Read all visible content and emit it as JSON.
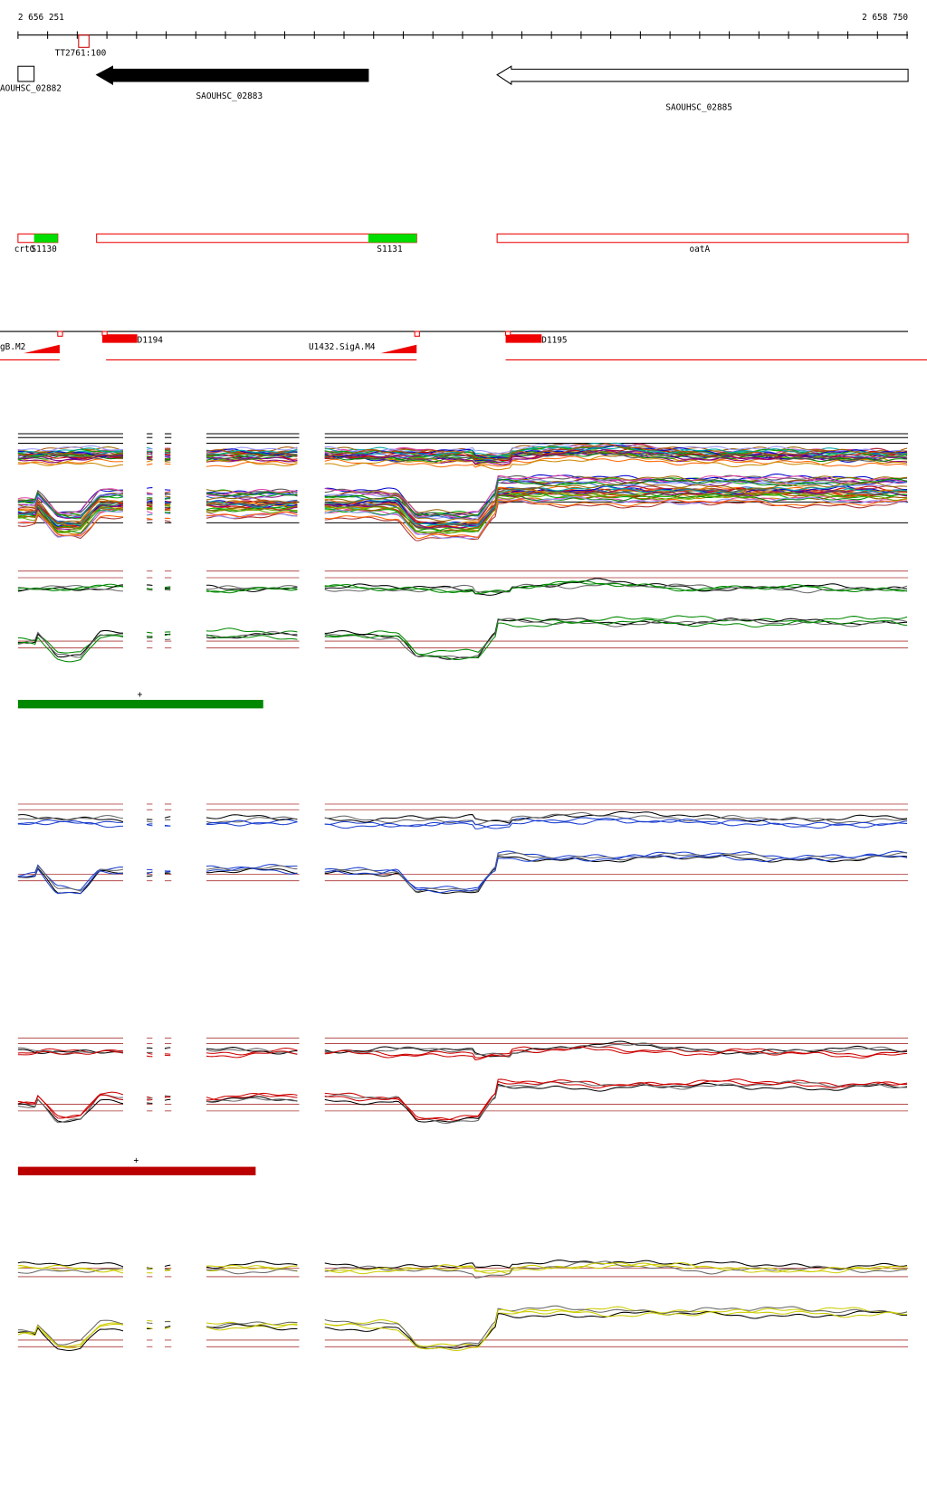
{
  "ruler": {
    "start": "2 656 251",
    "end": "2 658 750",
    "marker": "TT2761:100"
  },
  "genes": [
    "AOUHSC_02882",
    "SAOUHSC_02883",
    "SAOUHSC_02885"
  ],
  "features": [
    "crtO",
    "S1130",
    "S1131",
    "oatA"
  ],
  "transcripts": [
    "gB.M2",
    "D1194",
    "U1432.SigA.M4",
    "D1195"
  ],
  "conditions": [
    "+",
    "+"
  ]
}
